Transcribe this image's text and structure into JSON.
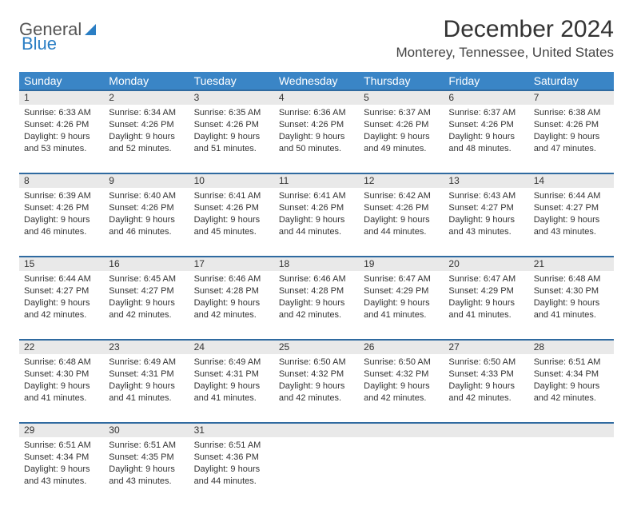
{
  "logo": {
    "text1": "General",
    "text2": "Blue"
  },
  "title": "December 2024",
  "subtitle": "Monterey, Tennessee, United States",
  "colors": {
    "header_bg": "#3a85c6",
    "row_sep": "#2f6aa0",
    "daynum_bg": "#e9e9e9",
    "text": "#333333",
    "logo_blue": "#2a7ec4"
  },
  "fonts": {
    "title_size": 30,
    "subtitle_size": 17,
    "th_size": 14,
    "daynum_size": 12,
    "cell_size": 11
  },
  "day_headers": [
    "Sunday",
    "Monday",
    "Tuesday",
    "Wednesday",
    "Thursday",
    "Friday",
    "Saturday"
  ],
  "weeks": [
    [
      {
        "n": "1",
        "sr": "6:33 AM",
        "ss": "4:26 PM",
        "dl": "9 hours and 53 minutes."
      },
      {
        "n": "2",
        "sr": "6:34 AM",
        "ss": "4:26 PM",
        "dl": "9 hours and 52 minutes."
      },
      {
        "n": "3",
        "sr": "6:35 AM",
        "ss": "4:26 PM",
        "dl": "9 hours and 51 minutes."
      },
      {
        "n": "4",
        "sr": "6:36 AM",
        "ss": "4:26 PM",
        "dl": "9 hours and 50 minutes."
      },
      {
        "n": "5",
        "sr": "6:37 AM",
        "ss": "4:26 PM",
        "dl": "9 hours and 49 minutes."
      },
      {
        "n": "6",
        "sr": "6:37 AM",
        "ss": "4:26 PM",
        "dl": "9 hours and 48 minutes."
      },
      {
        "n": "7",
        "sr": "6:38 AM",
        "ss": "4:26 PM",
        "dl": "9 hours and 47 minutes."
      }
    ],
    [
      {
        "n": "8",
        "sr": "6:39 AM",
        "ss": "4:26 PM",
        "dl": "9 hours and 46 minutes."
      },
      {
        "n": "9",
        "sr": "6:40 AM",
        "ss": "4:26 PM",
        "dl": "9 hours and 46 minutes."
      },
      {
        "n": "10",
        "sr": "6:41 AM",
        "ss": "4:26 PM",
        "dl": "9 hours and 45 minutes."
      },
      {
        "n": "11",
        "sr": "6:41 AM",
        "ss": "4:26 PM",
        "dl": "9 hours and 44 minutes."
      },
      {
        "n": "12",
        "sr": "6:42 AM",
        "ss": "4:26 PM",
        "dl": "9 hours and 44 minutes."
      },
      {
        "n": "13",
        "sr": "6:43 AM",
        "ss": "4:27 PM",
        "dl": "9 hours and 43 minutes."
      },
      {
        "n": "14",
        "sr": "6:44 AM",
        "ss": "4:27 PM",
        "dl": "9 hours and 43 minutes."
      }
    ],
    [
      {
        "n": "15",
        "sr": "6:44 AM",
        "ss": "4:27 PM",
        "dl": "9 hours and 42 minutes."
      },
      {
        "n": "16",
        "sr": "6:45 AM",
        "ss": "4:27 PM",
        "dl": "9 hours and 42 minutes."
      },
      {
        "n": "17",
        "sr": "6:46 AM",
        "ss": "4:28 PM",
        "dl": "9 hours and 42 minutes."
      },
      {
        "n": "18",
        "sr": "6:46 AM",
        "ss": "4:28 PM",
        "dl": "9 hours and 42 minutes."
      },
      {
        "n": "19",
        "sr": "6:47 AM",
        "ss": "4:29 PM",
        "dl": "9 hours and 41 minutes."
      },
      {
        "n": "20",
        "sr": "6:47 AM",
        "ss": "4:29 PM",
        "dl": "9 hours and 41 minutes."
      },
      {
        "n": "21",
        "sr": "6:48 AM",
        "ss": "4:30 PM",
        "dl": "9 hours and 41 minutes."
      }
    ],
    [
      {
        "n": "22",
        "sr": "6:48 AM",
        "ss": "4:30 PM",
        "dl": "9 hours and 41 minutes."
      },
      {
        "n": "23",
        "sr": "6:49 AM",
        "ss": "4:31 PM",
        "dl": "9 hours and 41 minutes."
      },
      {
        "n": "24",
        "sr": "6:49 AM",
        "ss": "4:31 PM",
        "dl": "9 hours and 41 minutes."
      },
      {
        "n": "25",
        "sr": "6:50 AM",
        "ss": "4:32 PM",
        "dl": "9 hours and 42 minutes."
      },
      {
        "n": "26",
        "sr": "6:50 AM",
        "ss": "4:32 PM",
        "dl": "9 hours and 42 minutes."
      },
      {
        "n": "27",
        "sr": "6:50 AM",
        "ss": "4:33 PM",
        "dl": "9 hours and 42 minutes."
      },
      {
        "n": "28",
        "sr": "6:51 AM",
        "ss": "4:34 PM",
        "dl": "9 hours and 42 minutes."
      }
    ],
    [
      {
        "n": "29",
        "sr": "6:51 AM",
        "ss": "4:34 PM",
        "dl": "9 hours and 43 minutes."
      },
      {
        "n": "30",
        "sr": "6:51 AM",
        "ss": "4:35 PM",
        "dl": "9 hours and 43 minutes."
      },
      {
        "n": "31",
        "sr": "6:51 AM",
        "ss": "4:36 PM",
        "dl": "9 hours and 44 minutes."
      },
      null,
      null,
      null,
      null
    ]
  ],
  "labels": {
    "sunrise": "Sunrise:",
    "sunset": "Sunset:",
    "daylight": "Daylight:"
  }
}
